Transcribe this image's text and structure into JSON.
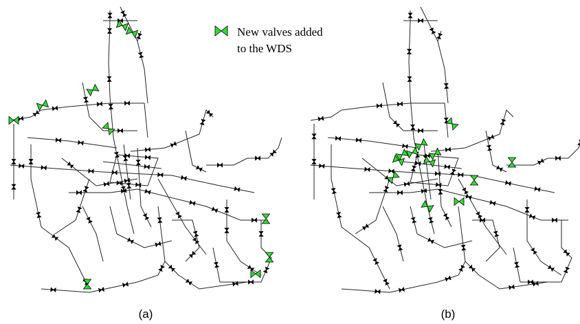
{
  "legend": {
    "label_lines": [
      "New valves added",
      "to the WDS"
    ]
  },
  "panels": [
    {
      "label": "(a)"
    },
    {
      "label": "(b)"
    }
  ]
}
